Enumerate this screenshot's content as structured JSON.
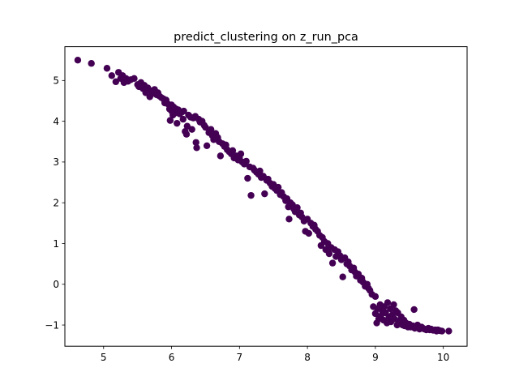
{
  "chart_data": {
    "type": "scatter",
    "title": "predict_clustering on z_run_pca",
    "xlabel": "",
    "ylabel": "",
    "xlim": [
      4.43,
      10.35
    ],
    "ylim": [
      -1.52,
      5.83
    ],
    "xticks": [
      5,
      6,
      7,
      8,
      9,
      10
    ],
    "yticks": [
      -1,
      0,
      1,
      2,
      3,
      4,
      5
    ],
    "xtick_labels": [
      "5",
      "6",
      "7",
      "8",
      "9",
      "10"
    ],
    "ytick_labels": [
      "−1",
      "0",
      "1",
      "2",
      "3",
      "4",
      "5"
    ],
    "grid": false,
    "legend": "none",
    "marker_color": "#440154",
    "series": [
      {
        "points": [
          [
            4.62,
            5.5
          ],
          [
            4.82,
            5.42
          ],
          [
            5.05,
            5.3
          ],
          [
            5.12,
            5.12
          ],
          [
            5.18,
            4.97
          ],
          [
            5.22,
            5.2
          ],
          [
            5.25,
            5.05
          ],
          [
            5.28,
            5.12
          ],
          [
            5.3,
            4.95
          ],
          [
            5.33,
            5.05
          ],
          [
            5.36,
            4.98
          ],
          [
            5.4,
            5.02
          ],
          [
            5.45,
            5.05
          ],
          [
            5.5,
            4.9
          ],
          [
            5.52,
            4.85
          ],
          [
            5.55,
            4.95
          ],
          [
            5.58,
            4.8
          ],
          [
            5.6,
            4.88
          ],
          [
            5.62,
            4.7
          ],
          [
            5.65,
            4.82
          ],
          [
            5.68,
            4.6
          ],
          [
            5.7,
            4.75
          ],
          [
            5.72,
            4.68
          ],
          [
            5.75,
            4.78
          ],
          [
            5.78,
            4.65
          ],
          [
            5.8,
            4.7
          ],
          [
            5.82,
            4.62
          ],
          [
            5.85,
            4.58
          ],
          [
            5.88,
            4.55
          ],
          [
            5.9,
            4.45
          ],
          [
            5.92,
            4.52
          ],
          [
            5.95,
            4.42
          ],
          [
            5.97,
            4.3
          ],
          [
            6.0,
            4.4
          ],
          [
            6.0,
            4.25
          ],
          [
            5.98,
            4.02
          ],
          [
            6.02,
            4.15
          ],
          [
            6.03,
            4.35
          ],
          [
            6.05,
            4.2
          ],
          [
            6.07,
            4.3
          ],
          [
            6.08,
            3.95
          ],
          [
            6.1,
            4.28
          ],
          [
            6.12,
            4.18
          ],
          [
            6.15,
            4.22
          ],
          [
            6.17,
            4.05
          ],
          [
            6.18,
            4.25
          ],
          [
            6.2,
            3.75
          ],
          [
            6.22,
            3.68
          ],
          [
            6.23,
            3.88
          ],
          [
            6.25,
            4.15
          ],
          [
            6.28,
            4.1
          ],
          [
            6.3,
            3.8
          ],
          [
            6.32,
            4.08
          ],
          [
            6.35,
            4.12
          ],
          [
            6.36,
            3.48
          ],
          [
            6.37,
            3.35
          ],
          [
            6.4,
            4.05
          ],
          [
            6.42,
            3.98
          ],
          [
            6.45,
            4.0
          ],
          [
            6.48,
            3.9
          ],
          [
            6.5,
            3.85
          ],
          [
            6.52,
            3.4
          ],
          [
            6.55,
            3.72
          ],
          [
            6.58,
            3.8
          ],
          [
            6.6,
            3.65
          ],
          [
            6.62,
            3.55
          ],
          [
            6.65,
            3.7
          ],
          [
            6.68,
            3.6
          ],
          [
            6.7,
            3.5
          ],
          [
            6.72,
            3.15
          ],
          [
            6.75,
            3.45
          ],
          [
            6.78,
            3.38
          ],
          [
            6.8,
            3.42
          ],
          [
            6.82,
            3.3
          ],
          [
            6.85,
            3.25
          ],
          [
            6.88,
            3.2
          ],
          [
            6.9,
            3.28
          ],
          [
            6.92,
            3.1
          ],
          [
            6.95,
            3.15
          ],
          [
            6.98,
            3.05
          ],
          [
            7.0,
            3.1
          ],
          [
            7.02,
            3.2
          ],
          [
            7.04,
            3.0
          ],
          [
            7.07,
            2.95
          ],
          [
            7.1,
            3.02
          ],
          [
            7.12,
            2.6
          ],
          [
            7.15,
            2.88
          ],
          [
            7.17,
            2.18
          ],
          [
            7.2,
            2.85
          ],
          [
            7.22,
            2.8
          ],
          [
            7.25,
            2.75
          ],
          [
            7.28,
            2.7
          ],
          [
            7.3,
            2.78
          ],
          [
            7.32,
            2.62
          ],
          [
            7.35,
            2.65
          ],
          [
            7.37,
            2.22
          ],
          [
            7.4,
            2.55
          ],
          [
            7.42,
            2.58
          ],
          [
            7.45,
            2.48
          ],
          [
            7.48,
            2.4
          ],
          [
            7.5,
            2.45
          ],
          [
            7.52,
            2.35
          ],
          [
            7.55,
            2.3
          ],
          [
            7.57,
            2.38
          ],
          [
            7.6,
            2.2
          ],
          [
            7.62,
            2.25
          ],
          [
            7.65,
            2.15
          ],
          [
            7.68,
            2.05
          ],
          [
            7.7,
            2.1
          ],
          [
            7.72,
            1.9
          ],
          [
            7.73,
            1.6
          ],
          [
            7.75,
            2.0
          ],
          [
            7.78,
            1.95
          ],
          [
            7.8,
            1.85
          ],
          [
            7.82,
            1.78
          ],
          [
            7.85,
            1.88
          ],
          [
            7.88,
            1.7
          ],
          [
            7.9,
            1.75
          ],
          [
            7.92,
            1.65
          ],
          [
            7.95,
            1.55
          ],
          [
            7.97,
            1.3
          ],
          [
            8.0,
            1.6
          ],
          [
            8.02,
            1.25
          ],
          [
            8.05,
            1.5
          ],
          [
            8.08,
            1.42
          ],
          [
            8.1,
            1.45
          ],
          [
            8.12,
            1.35
          ],
          [
            8.15,
            1.3
          ],
          [
            8.18,
            1.2
          ],
          [
            8.2,
            0.95
          ],
          [
            8.22,
            1.15
          ],
          [
            8.25,
            1.05
          ],
          [
            8.27,
            0.85
          ],
          [
            8.3,
            1.0
          ],
          [
            8.32,
            0.75
          ],
          [
            8.35,
            0.9
          ],
          [
            8.37,
            0.52
          ],
          [
            8.4,
            0.85
          ],
          [
            8.42,
            0.68
          ],
          [
            8.45,
            0.8
          ],
          [
            8.48,
            0.7
          ],
          [
            8.5,
            0.6
          ],
          [
            8.52,
            0.18
          ],
          [
            8.55,
            0.65
          ],
          [
            8.58,
            0.5
          ],
          [
            8.6,
            0.55
          ],
          [
            8.62,
            0.45
          ],
          [
            8.65,
            0.35
          ],
          [
            8.68,
            0.4
          ],
          [
            8.7,
            0.3
          ],
          [
            8.72,
            0.2
          ],
          [
            8.75,
            0.25
          ],
          [
            8.78,
            0.1
          ],
          [
            8.8,
            0.15
          ],
          [
            8.82,
            0.05
          ],
          [
            8.85,
            -0.05
          ],
          [
            8.88,
            0.0
          ],
          [
            8.9,
            -0.1
          ],
          [
            8.92,
            -0.15
          ],
          [
            8.95,
            -0.25
          ],
          [
            8.97,
            -0.55
          ],
          [
            9.0,
            -0.3
          ],
          [
            9.0,
            -0.72
          ],
          [
            9.02,
            -0.95
          ],
          [
            9.03,
            -0.6
          ],
          [
            9.05,
            -0.85
          ],
          [
            9.07,
            -0.5
          ],
          [
            9.08,
            -0.78
          ],
          [
            9.1,
            -0.65
          ],
          [
            9.12,
            -0.88
          ],
          [
            9.13,
            -0.55
          ],
          [
            9.15,
            -0.7
          ],
          [
            9.17,
            -0.95
          ],
          [
            9.18,
            -0.45
          ],
          [
            9.2,
            -0.8
          ],
          [
            9.22,
            -0.6
          ],
          [
            9.23,
            -0.92
          ],
          [
            9.25,
            -0.75
          ],
          [
            9.27,
            -0.5
          ],
          [
            9.28,
            -0.85
          ],
          [
            9.3,
            -0.65
          ],
          [
            9.32,
            -1.0
          ],
          [
            9.33,
            -0.7
          ],
          [
            9.35,
            -0.9
          ],
          [
            9.37,
            -0.95
          ],
          [
            9.38,
            -0.8
          ],
          [
            9.4,
            -1.0
          ],
          [
            9.42,
            -0.88
          ],
          [
            9.43,
            -1.02
          ],
          [
            9.45,
            -0.95
          ],
          [
            9.48,
            -1.05
          ],
          [
            9.5,
            -0.98
          ],
          [
            9.52,
            -1.05
          ],
          [
            9.55,
            -1.02
          ],
          [
            9.57,
            -0.62
          ],
          [
            9.58,
            -1.08
          ],
          [
            9.6,
            -1.05
          ],
          [
            9.62,
            -1.0
          ],
          [
            9.65,
            -1.1
          ],
          [
            9.68,
            -1.05
          ],
          [
            9.7,
            -1.08
          ],
          [
            9.72,
            -1.1
          ],
          [
            9.75,
            -1.12
          ],
          [
            9.78,
            -1.08
          ],
          [
            9.8,
            -1.12
          ],
          [
            9.82,
            -1.1
          ],
          [
            9.85,
            -1.13
          ],
          [
            9.88,
            -1.12
          ],
          [
            9.9,
            -1.15
          ],
          [
            9.92,
            -1.12
          ],
          [
            9.95,
            -1.14
          ],
          [
            9.98,
            -1.15
          ],
          [
            10.08,
            -1.15
          ]
        ]
      }
    ]
  }
}
